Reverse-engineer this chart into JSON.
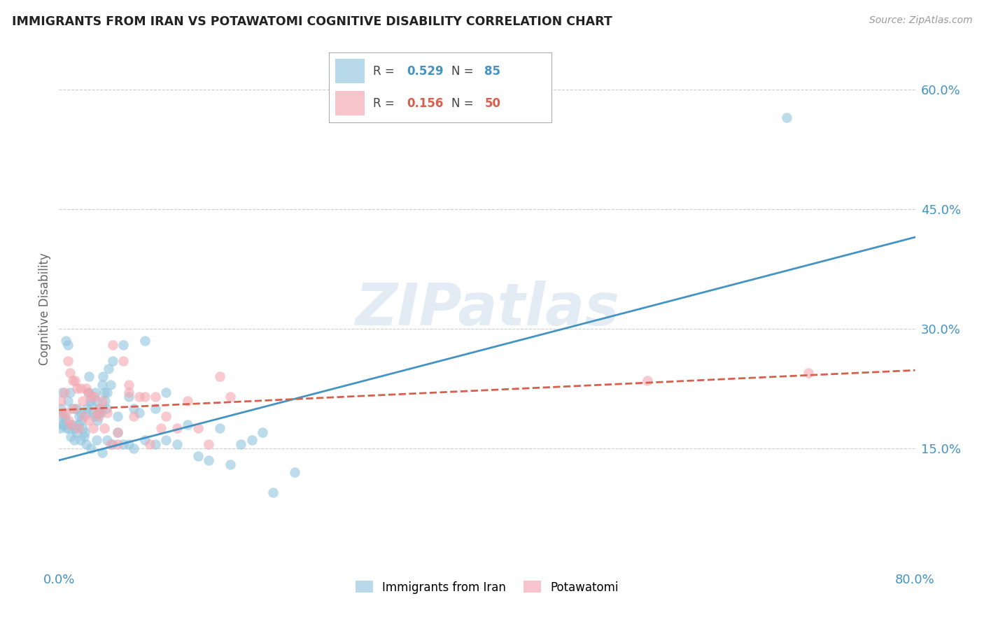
{
  "title": "IMMIGRANTS FROM IRAN VS POTAWATOMI COGNITIVE DISABILITY CORRELATION CHART",
  "source": "Source: ZipAtlas.com",
  "ylabel": "Cognitive Disability",
  "x_min": 0.0,
  "x_max": 0.8,
  "y_min": 0.0,
  "y_max": 0.65,
  "y_ticks": [
    0.15,
    0.3,
    0.45,
    0.6
  ],
  "y_tick_labels": [
    "15.0%",
    "30.0%",
    "45.0%",
    "60.0%"
  ],
  "x_ticks": [
    0.0,
    0.1,
    0.2,
    0.3,
    0.4,
    0.5,
    0.6,
    0.7,
    0.8
  ],
  "x_tick_labels": [
    "0.0%",
    "",
    "",
    "",
    "",
    "",
    "",
    "",
    "80.0%"
  ],
  "blue_color": "#92c5de",
  "pink_color": "#f4a5b0",
  "blue_line_color": "#4393c3",
  "pink_line_color": "#d6604d",
  "grid_color": "#cccccc",
  "watermark_color": "#c8d8ea",
  "legend_R_blue": "0.529",
  "legend_N_blue": "85",
  "legend_R_pink": "0.156",
  "legend_N_pink": "50",
  "blue_scatter_x": [
    0.005,
    0.008,
    0.01,
    0.012,
    0.013,
    0.015,
    0.016,
    0.017,
    0.018,
    0.019,
    0.02,
    0.021,
    0.022,
    0.023,
    0.024,
    0.025,
    0.026,
    0.027,
    0.028,
    0.029,
    0.03,
    0.032,
    0.033,
    0.034,
    0.035,
    0.036,
    0.037,
    0.038,
    0.039,
    0.04,
    0.041,
    0.042,
    0.043,
    0.044,
    0.045,
    0.046,
    0.048,
    0.05,
    0.055,
    0.06,
    0.065,
    0.07,
    0.075,
    0.08,
    0.09,
    0.1,
    0.12,
    0.15,
    0.18,
    0.22,
    0.002,
    0.003,
    0.004,
    0.006,
    0.007,
    0.009,
    0.011,
    0.014,
    0.02,
    0.025,
    0.03,
    0.035,
    0.04,
    0.045,
    0.05,
    0.055,
    0.06,
    0.065,
    0.07,
    0.08,
    0.09,
    0.1,
    0.11,
    0.13,
    0.14,
    0.16,
    0.17,
    0.19,
    0.2,
    0.68,
    0.001,
    0.002,
    0.003,
    0.006,
    0.008
  ],
  "blue_scatter_y": [
    0.19,
    0.21,
    0.22,
    0.2,
    0.18,
    0.175,
    0.17,
    0.2,
    0.18,
    0.19,
    0.195,
    0.185,
    0.175,
    0.165,
    0.17,
    0.195,
    0.2,
    0.22,
    0.24,
    0.21,
    0.205,
    0.195,
    0.19,
    0.22,
    0.21,
    0.185,
    0.195,
    0.2,
    0.195,
    0.23,
    0.24,
    0.22,
    0.21,
    0.2,
    0.22,
    0.25,
    0.23,
    0.26,
    0.19,
    0.28,
    0.215,
    0.2,
    0.195,
    0.285,
    0.2,
    0.22,
    0.18,
    0.175,
    0.16,
    0.12,
    0.2,
    0.22,
    0.18,
    0.185,
    0.175,
    0.175,
    0.165,
    0.16,
    0.16,
    0.155,
    0.15,
    0.16,
    0.145,
    0.16,
    0.155,
    0.17,
    0.155,
    0.155,
    0.15,
    0.16,
    0.155,
    0.16,
    0.155,
    0.14,
    0.135,
    0.13,
    0.155,
    0.17,
    0.095,
    0.565,
    0.175,
    0.19,
    0.18,
    0.285,
    0.28
  ],
  "pink_scatter_x": [
    0.005,
    0.008,
    0.01,
    0.013,
    0.015,
    0.017,
    0.02,
    0.022,
    0.025,
    0.027,
    0.03,
    0.033,
    0.035,
    0.038,
    0.04,
    0.045,
    0.05,
    0.055,
    0.06,
    0.065,
    0.07,
    0.08,
    0.09,
    0.1,
    0.12,
    0.15,
    0.002,
    0.003,
    0.006,
    0.009,
    0.011,
    0.014,
    0.018,
    0.023,
    0.028,
    0.032,
    0.037,
    0.042,
    0.048,
    0.055,
    0.065,
    0.075,
    0.085,
    0.095,
    0.11,
    0.13,
    0.14,
    0.16,
    0.55,
    0.7
  ],
  "pink_scatter_y": [
    0.22,
    0.26,
    0.245,
    0.235,
    0.235,
    0.225,
    0.225,
    0.21,
    0.225,
    0.22,
    0.215,
    0.215,
    0.195,
    0.2,
    0.21,
    0.195,
    0.28,
    0.155,
    0.26,
    0.22,
    0.19,
    0.215,
    0.215,
    0.19,
    0.21,
    0.24,
    0.21,
    0.195,
    0.195,
    0.185,
    0.18,
    0.2,
    0.175,
    0.19,
    0.185,
    0.175,
    0.19,
    0.175,
    0.155,
    0.17,
    0.23,
    0.215,
    0.155,
    0.175,
    0.175,
    0.175,
    0.155,
    0.215,
    0.235,
    0.245
  ],
  "blue_trendline_x": [
    0.0,
    0.8
  ],
  "blue_trendline_y": [
    0.135,
    0.415
  ],
  "pink_trendline_x": [
    0.0,
    0.8
  ],
  "pink_trendline_y": [
    0.198,
    0.248
  ]
}
